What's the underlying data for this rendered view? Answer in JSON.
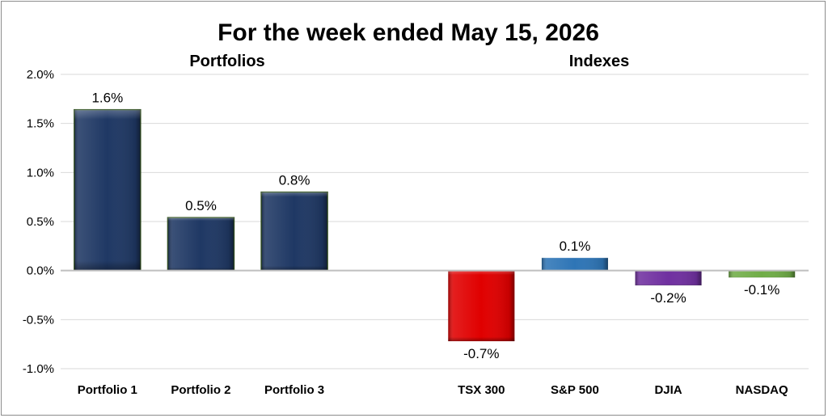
{
  "chart_data": {
    "type": "bar",
    "title": "For the week ended May 15, 2026",
    "groups": [
      {
        "title": "Portfolios",
        "categories": [
          "Portfolio 1",
          "Portfolio 2",
          "Portfolio 3"
        ]
      },
      {
        "title": "Indexes",
        "categories": [
          "TSX 300",
          "S&P 500",
          "DJIA",
          "NASDAQ"
        ]
      }
    ],
    "categories": [
      "Portfolio 1",
      "Portfolio 2",
      "Portfolio 3",
      "",
      "TSX 300",
      "S&P 500",
      "DJIA",
      "NASDAQ"
    ],
    "values": [
      1.64,
      0.54,
      0.8,
      null,
      -0.72,
      0.13,
      -0.15,
      -0.07
    ],
    "data_labels": [
      "1.6%",
      "0.5%",
      "0.8%",
      "",
      "-0.7%",
      "0.1%",
      "-0.2%",
      "-0.1%"
    ],
    "bar_colors": [
      "#1f3864",
      "#1f3864",
      "#1f3864",
      "",
      "#e00000",
      "#2e75b6",
      "#7030a0",
      "#70ad47"
    ],
    "ylim": [
      -1.0,
      2.0
    ],
    "yticks": [
      2.0,
      1.5,
      1.0,
      0.5,
      0.0,
      -0.5,
      -1.0
    ],
    "ytick_labels": [
      "2.0%",
      "1.5%",
      "1.0%",
      "0.5%",
      "0.0%",
      "-0.5%",
      "-1.0%"
    ],
    "grid": true,
    "xlabel": "",
    "ylabel": ""
  }
}
